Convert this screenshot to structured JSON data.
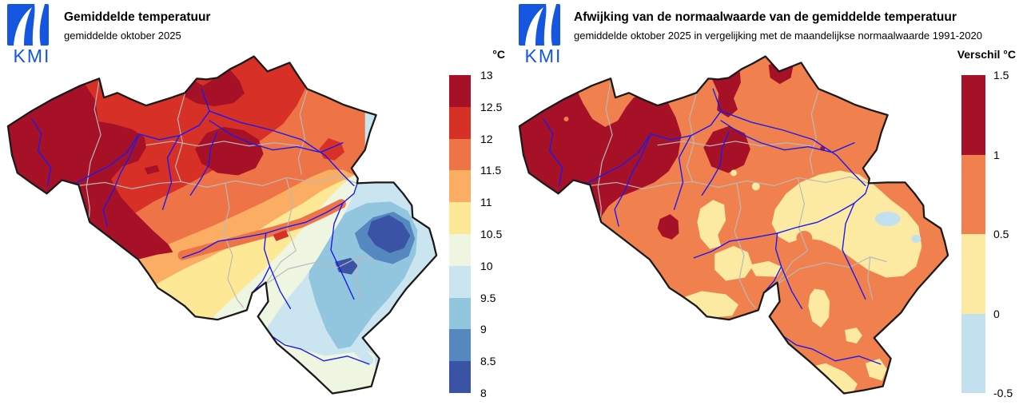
{
  "brand": {
    "logo_text": "KMI",
    "logo_color": "#1456E0"
  },
  "panels": [
    {
      "title": "Gemiddelde temperatuur",
      "subtitle": "gemiddelde oktober 2025",
      "legend": {
        "unit": "°C",
        "labels": [
          "13",
          "12.5",
          "12",
          "11.5",
          "11",
          "10.5",
          "10",
          "9.5",
          "9",
          "8.5",
          "8"
        ],
        "colors": [
          "#A61128",
          "#D73027",
          "#EE7347",
          "#FBAE63",
          "#FDE896",
          "#EEF6E1",
          "#CBE5F0",
          "#92C5DE",
          "#5488BE",
          "#3A53A4"
        ]
      }
    },
    {
      "title": "Afwijking van de normaalwaarde van de gemiddelde temperatuur",
      "subtitle": "gemiddelde oktober 2025 in vergelijking met de maandelijkse normaalwaarde 1991-2020",
      "legend": {
        "unit": "Verschil °C",
        "labels": [
          "1.5",
          "1",
          "0.5",
          "0",
          "-0.5"
        ],
        "colors": [
          "#A61128",
          "#F0814E",
          "#FCE9A2",
          "#C2E0ED"
        ]
      }
    }
  ],
  "map": {
    "features": {
      "country_outline": "#1a1a1a",
      "province_borders": "#b9b9b9",
      "rivers": "#1a1aee"
    },
    "palette": {
      "t_dark_red": "#A61128",
      "t_red": "#D73027",
      "t_orange": "#EE7347",
      "t_light_orange": "#FBAE63",
      "t_pale_yellow": "#FDE896",
      "t_pale_green": "#EEF6E1",
      "t_light_blue": "#CBE5F0",
      "t_mid_blue": "#92C5DE",
      "t_blue": "#5488BE",
      "t_dark_blue": "#3A53A4",
      "a_dark_red": "#A61128",
      "a_orange": "#F0814E",
      "a_pale_yellow": "#FCE9A2",
      "a_light_blue": "#C2E0ED"
    }
  }
}
